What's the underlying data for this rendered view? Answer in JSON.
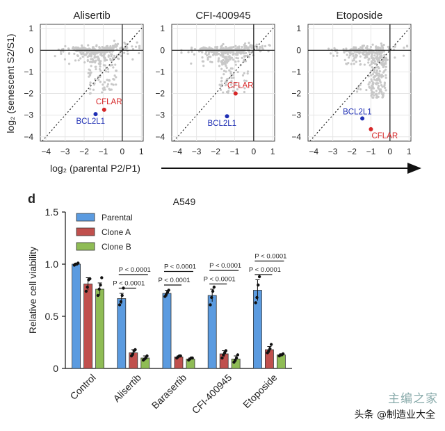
{
  "top_panels": {
    "shared_ylabel": "log₂ (senescent S2/S1)",
    "shared_xlabel": "log₂ (parental P2/P1)",
    "x_ticks": [
      "−4",
      "−3",
      "−2",
      "−1",
      "0",
      "1"
    ],
    "y_ticks": [
      "1",
      "0",
      "−1",
      "−2",
      "−3",
      "−4"
    ]
  },
  "bottom_panel": {
    "panel_letter": "d"
  },
  "watermark": {
    "text": "头条 @制造业大全",
    "logo_text": "主编之家"
  },
  "chart_data": [
    {
      "type": "scatter",
      "title": "Alisertib",
      "xlim": [
        -4.3,
        1.1
      ],
      "ylim": [
        -4.2,
        1.2
      ],
      "xticks": [
        -4,
        -3,
        -2,
        -1,
        0,
        1
      ],
      "yticks": [
        1,
        0,
        -1,
        -2,
        -3,
        -4
      ],
      "grid": true,
      "diagonal_reference": true,
      "highlight": [
        {
          "label": "CFLAR",
          "x": -0.95,
          "y": -2.75,
          "color": "#d62728"
        },
        {
          "label": "BCL2L1",
          "x": -1.4,
          "y": -2.95,
          "color": "#1f2fb4"
        }
      ]
    },
    {
      "type": "scatter",
      "title": "CFI-400945",
      "xlim": [
        -4.3,
        1.1
      ],
      "ylim": [
        -4.2,
        1.2
      ],
      "xticks": [
        -4,
        -3,
        -2,
        -1,
        0,
        1
      ],
      "yticks": [
        1,
        0,
        -1,
        -2,
        -3,
        -4
      ],
      "grid": true,
      "diagonal_reference": true,
      "highlight": [
        {
          "label": "CFLAR",
          "x": -0.95,
          "y": -2.0,
          "color": "#d62728"
        },
        {
          "label": "BCL2L1",
          "x": -1.4,
          "y": -3.05,
          "color": "#1f2fb4"
        }
      ]
    },
    {
      "type": "scatter",
      "title": "Etoposide",
      "xlim": [
        -4.3,
        1.1
      ],
      "ylim": [
        -4.2,
        1.2
      ],
      "xticks": [
        -4,
        -3,
        -2,
        -1,
        0,
        1
      ],
      "yticks": [
        1,
        0,
        -1,
        -2,
        -3,
        -4
      ],
      "grid": true,
      "diagonal_reference": true,
      "highlight": [
        {
          "label": "BCL2L1",
          "x": -1.45,
          "y": -3.15,
          "color": "#1f2fb4"
        },
        {
          "label": "CFLAR",
          "x": -1.0,
          "y": -3.65,
          "color": "#d62728"
        }
      ]
    },
    {
      "type": "bar",
      "title": "A549",
      "ylabel": "Relative cell viability",
      "ylim": [
        0,
        1.5
      ],
      "yticks": [
        0,
        0.5,
        1.0,
        1.5
      ],
      "ytick_labels": [
        "0",
        "0.5",
        "1.0",
        "1.5"
      ],
      "categories": [
        "Control",
        "Alisertib",
        "Barasertib",
        "CFI-400945",
        "Etoposide"
      ],
      "legend_position": "top-left",
      "series": [
        {
          "name": "Parental",
          "color": "#5b9be0",
          "values": [
            1.0,
            0.67,
            0.72,
            0.7,
            0.75
          ],
          "errors": [
            0.01,
            0.05,
            0.03,
            0.06,
            0.1
          ]
        },
        {
          "name": "Clone A",
          "color": "#c0504d",
          "values": [
            0.81,
            0.15,
            0.11,
            0.14,
            0.18
          ],
          "errors": [
            0.06,
            0.03,
            0.01,
            0.03,
            0.03
          ]
        },
        {
          "name": "Clone B",
          "color": "#8fbc55",
          "values": [
            0.76,
            0.1,
            0.09,
            0.09,
            0.13
          ],
          "errors": [
            0.06,
            0.02,
            0.01,
            0.03,
            0.01
          ]
        }
      ],
      "replicates": [
        [
          [
            0.99,
            1.0,
            1.0,
            1.01
          ],
          [
            0.74,
            0.78,
            0.85,
            0.86
          ],
          [
            0.7,
            0.76,
            0.8,
            0.87
          ]
        ],
        [
          [
            0.61,
            0.64,
            0.7,
            0.77
          ],
          [
            0.12,
            0.14,
            0.17,
            0.18
          ],
          [
            0.08,
            0.09,
            0.1,
            0.12
          ]
        ],
        [
          [
            0.69,
            0.71,
            0.73,
            0.75
          ],
          [
            0.1,
            0.11,
            0.12,
            0.12
          ],
          [
            0.08,
            0.09,
            0.1,
            0.1
          ]
        ],
        [
          [
            0.61,
            0.68,
            0.74,
            0.78
          ],
          [
            0.1,
            0.13,
            0.15,
            0.17
          ],
          [
            0.06,
            0.08,
            0.1,
            0.13
          ]
        ],
        [
          [
            0.63,
            0.68,
            0.8,
            0.88
          ],
          [
            0.15,
            0.17,
            0.19,
            0.23
          ],
          [
            0.12,
            0.13,
            0.13,
            0.14
          ]
        ]
      ],
      "annotations": [
        {
          "category": "Alisertib",
          "comparison": "Parental vs Clone A",
          "text": "P < 0.0001"
        },
        {
          "category": "Alisertib",
          "comparison": "Parental vs Clone B",
          "text": "P < 0.0001"
        },
        {
          "category": "Barasertib",
          "comparison": "Parental vs Clone A",
          "text": "P < 0.0001"
        },
        {
          "category": "Barasertib",
          "comparison": "Parental vs Clone B",
          "text": "P < 0.0001"
        },
        {
          "category": "CFI-400945",
          "comparison": "Parental vs Clone A",
          "text": "P < 0.0001"
        },
        {
          "category": "CFI-400945",
          "comparison": "Parental vs Clone B",
          "text": "P < 0.0001"
        },
        {
          "category": "Etoposide",
          "comparison": "Parental vs Clone A",
          "text": "P < 0.0001"
        },
        {
          "category": "Etoposide",
          "comparison": "Parental vs Clone B",
          "text": "P < 0.0001"
        }
      ]
    }
  ]
}
